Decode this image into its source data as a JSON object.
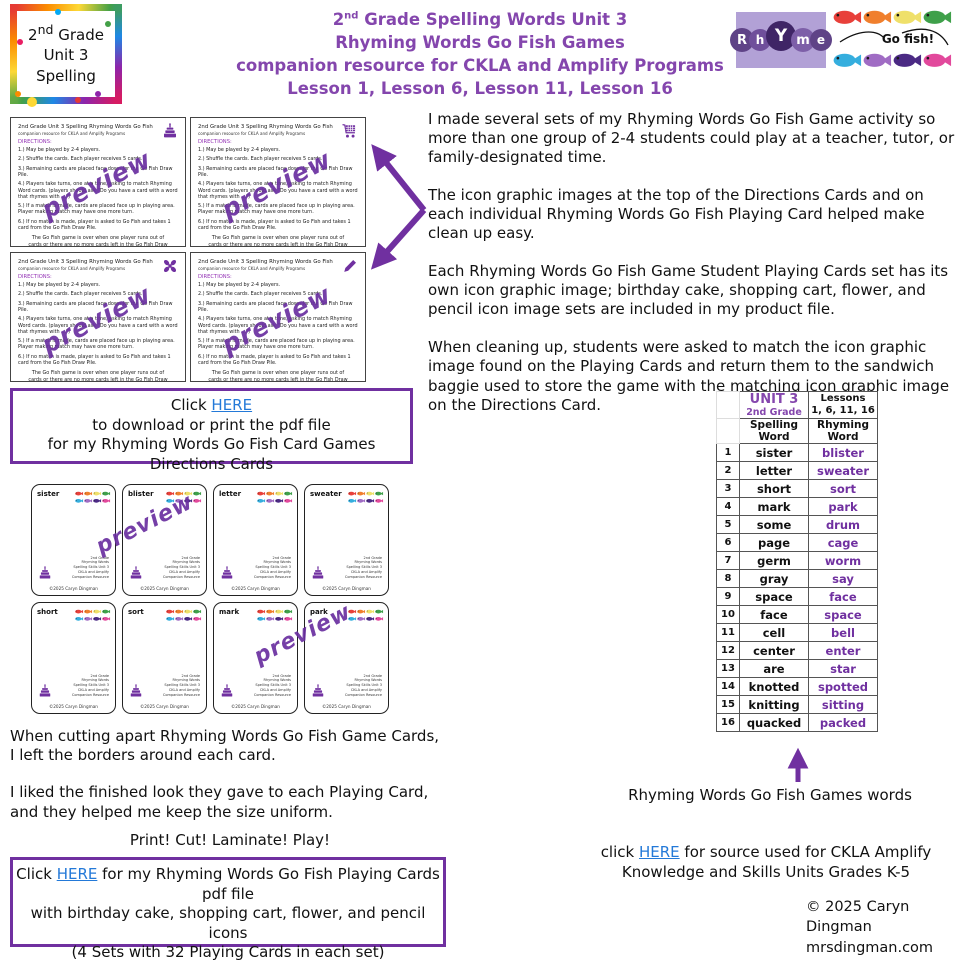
{
  "watermark_text": "preview",
  "header": {
    "logo": {
      "line1_base": "2",
      "line1_sup": "nd",
      "line1_rest": " Grade",
      "line2": "Unit 3",
      "line3": "Spelling"
    },
    "title": {
      "l1_base": "2",
      "l1_sup": "nd",
      "l1_rest": " Grade Spelling Words Unit 3",
      "l2": "Rhyming Words Go Fish Games",
      "l3": "companion resource for CKLA and Amplify Programs",
      "l4": "Lesson 1, Lesson 6, Lesson 11, Lesson 16"
    },
    "rhyme_logo_letters": [
      "R",
      "h",
      "Y",
      "m",
      "e"
    ],
    "gofish_logo_label": "Go fish!"
  },
  "directions_cards": {
    "title": "2nd Grade Unit 3 Spelling Rhyming Words Go Fish",
    "subtitle": "companion resource for CKLA and Amplify Programs",
    "directions_label": "DIRECTIONS:",
    "steps": [
      "1.) May be played by 2-4 players.",
      "2.) Shuffle the cards. Each player receives 5 cards.",
      "3.) Remaining cards are placed face down for the Go Fish Draw Pile.",
      "4.) Players take turns, one at a time, asking to match Rhyming Word cards. (players should ask \"Do you have a card with a word that rhymes with ...\")",
      "5.) If a match is made, cards are placed face up in playing area. Player making match may have one more turn.",
      "6.) If no match is made, player is asked to Go Fish and takes 1 card from the Go Fish Draw Pile.",
      "The Go Fish game is over when one player runs out of cards or there are no more cards left in the Go Fish Draw Pile or all Rhyming Word cards have been matched."
    ],
    "icons": [
      "birthday-cake",
      "shopping-cart",
      "flower",
      "pencil"
    ]
  },
  "download_box_directions": {
    "line1_prefix": "Click ",
    "link_label": "HERE",
    "line2": "to download or print the pdf file",
    "line3": "for my Rhyming Words Go Fish Card Games",
    "line4": "Directions Cards"
  },
  "intro_paragraphs": [
    "I made several sets of my Rhyming Words Go Fish Game activity so more than one group of 2-4 students could play at a teacher, tutor, or family-designated time.",
    "The icon graphic images at the top of the Directions Cards and on each individual Rhyming Words Go Fish Playing Card helped make clean up easy.",
    "Each Rhyming Words Go Fish Game Student Playing Cards set has its own icon graphic image; birthday cake, shopping cart, flower, and pencil icon image sets are included in my product file.",
    "When cleaning up, students were asked to match the icon graphic image found on the Playing Cards and return them to the sandwich baggie used to store the game with the matching icon graphic image on the Directions Card."
  ],
  "playing_cards": {
    "words": [
      "sister",
      "blister",
      "letter",
      "sweater",
      "short",
      "sort",
      "mark",
      "park"
    ],
    "footer_lines": [
      "2nd Grade",
      "Rhyming Words",
      "Spelling Skills Unit 3",
      "CKLA and Amplify",
      "Companion Resource"
    ],
    "copyright": "©2025 Caryn Dingman"
  },
  "cutting_text": {
    "p1a": "When cutting apart Rhyming Words Go Fish Game Cards,",
    "p1b": "I left the borders around each card.",
    "p2a": "I liked the finished look they gave to each Playing Card,",
    "p2b": "and they helped me keep the size uniform.",
    "print_line": "Print! Cut! Laminate! Play!"
  },
  "download_box_playing": {
    "line1_prefix": "Click ",
    "link_label": "HERE",
    "line1_suffix": " for my Rhyming Words Go Fish Playing Cards",
    "line2": "pdf file",
    "line3": "with birthday cake, shopping cart, flower, and pencil icons",
    "line4": "(4 Sets with 32 Playing Cards in each set)"
  },
  "word_table": {
    "header": {
      "unit": "UNIT 3",
      "grade": "2nd Grade",
      "lessons_top": "Lessons",
      "lessons_bottom": "1, 6, 11, 16",
      "col_spelling": "Spelling Word",
      "col_rhyming": "Rhyming Word"
    },
    "rows": [
      {
        "num": "1",
        "spelling": "sister",
        "rhyming": "blister"
      },
      {
        "num": "2",
        "spelling": "letter",
        "rhyming": "sweater"
      },
      {
        "num": "3",
        "spelling": "short",
        "rhyming": "sort"
      },
      {
        "num": "4",
        "spelling": "mark",
        "rhyming": "park"
      },
      {
        "num": "5",
        "spelling": "some",
        "rhyming": "drum"
      },
      {
        "num": "6",
        "spelling": "page",
        "rhyming": "cage"
      },
      {
        "num": "7",
        "spelling": "germ",
        "rhyming": "worm"
      },
      {
        "num": "8",
        "spelling": "gray",
        "rhyming": "say"
      },
      {
        "num": "9",
        "spelling": "space",
        "rhyming": "face"
      },
      {
        "num": "10",
        "spelling": "face",
        "rhyming": "space"
      },
      {
        "num": "11",
        "spelling": "cell",
        "rhyming": "bell"
      },
      {
        "num": "12",
        "spelling": "center",
        "rhyming": "enter"
      },
      {
        "num": "13",
        "spelling": "are",
        "rhyming": "star"
      },
      {
        "num": "14",
        "spelling": "knotted",
        "rhyming": "spotted"
      },
      {
        "num": "15",
        "spelling": "knitting",
        "rhyming": "sitting"
      },
      {
        "num": "16",
        "spelling": "quacked",
        "rhyming": "packed"
      }
    ],
    "caption": "Rhyming  Words Go Fish Games words"
  },
  "source_link": {
    "prefix": "click ",
    "link_label": "HERE",
    "suffix": " for source used for CKLA Amplify",
    "line2": "Knowledge and Skills Units Grades K-5"
  },
  "copyright": {
    "line1": "© 2025 Caryn Dingman",
    "line2": "mrsdingman.com"
  },
  "colors": {
    "accent_purple": "#7030a0",
    "title_purple": "#8446ad",
    "link_blue": "#2379d8"
  }
}
